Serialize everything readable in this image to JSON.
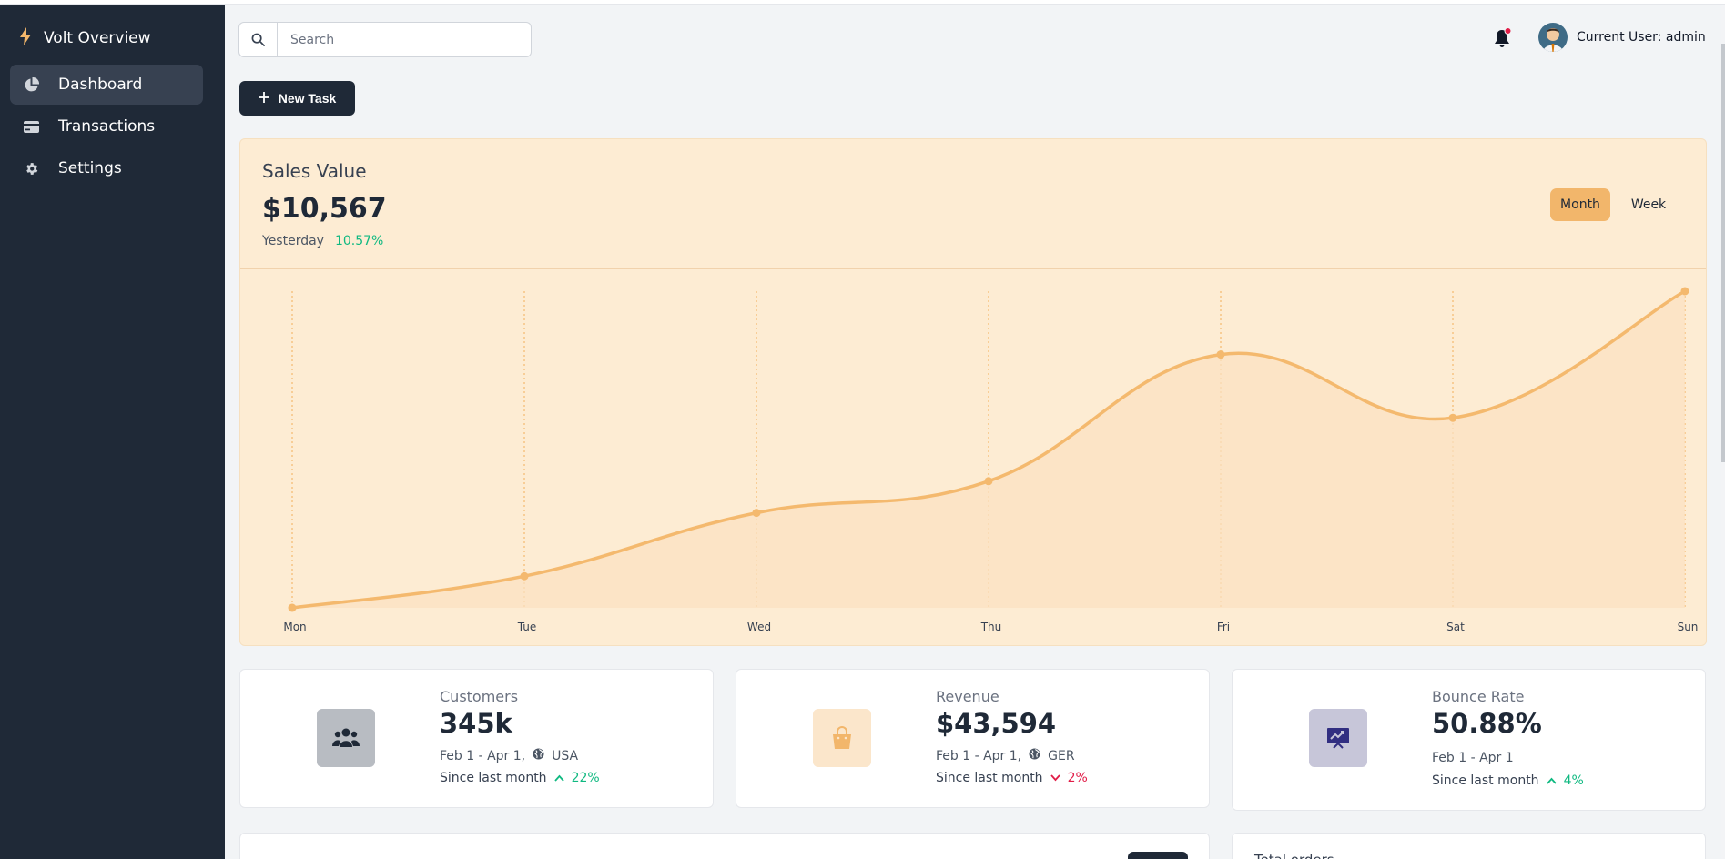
{
  "app": {
    "brand": "Volt Overview"
  },
  "sidebar": {
    "items": [
      {
        "label": "Dashboard",
        "icon": "pie-chart-icon",
        "active": true
      },
      {
        "label": "Transactions",
        "icon": "credit-card-icon",
        "active": false
      },
      {
        "label": "Settings",
        "icon": "gear-icon",
        "active": false
      }
    ]
  },
  "header": {
    "search_placeholder": "Search",
    "user_label": "Current User: admin",
    "notification": true
  },
  "actions": {
    "new_task": "New Task"
  },
  "sales": {
    "title": "Sales Value",
    "value": "$10,567",
    "period": "Yesterday",
    "change": "10.57%",
    "toggle_month": "Month",
    "toggle_week": "Week"
  },
  "chart_data": {
    "type": "area",
    "categories": [
      "Mon",
      "Tue",
      "Wed",
      "Thu",
      "Fri",
      "Sat",
      "Sun"
    ],
    "values": [
      0,
      1,
      3,
      4,
      8,
      6,
      10
    ],
    "ylim": [
      0,
      10
    ],
    "grid": "vertical dotted",
    "color": "#f4b96e"
  },
  "stats": [
    {
      "label": "Customers",
      "value": "345k",
      "period": "Feb 1 - Apr 1,",
      "region": "USA",
      "since": "Since last month",
      "change": "22%",
      "direction": "up",
      "icon": "users-icon",
      "icon_bg": "#b8bcc2"
    },
    {
      "label": "Revenue",
      "value": "$43,594",
      "period": "Feb 1 - Apr 1,",
      "region": "GER",
      "since": "Since last month",
      "change": "2%",
      "direction": "down",
      "icon": "shopping-bag-icon",
      "icon_bg": "#fbe6cb"
    },
    {
      "label": "Bounce Rate",
      "value": "50.88%",
      "period": "Feb 1 - Apr 1",
      "since": "Since last month",
      "change": "4%",
      "direction": "up",
      "icon": "presentation-chart-icon",
      "icon_bg": "#c7c6d9"
    }
  ],
  "bottom": {
    "right_title": "Total orders"
  },
  "colors": {
    "sidebar": "#1f2937",
    "accent": "#f2b66b",
    "positive": "#10b981",
    "negative": "#e11d48"
  }
}
